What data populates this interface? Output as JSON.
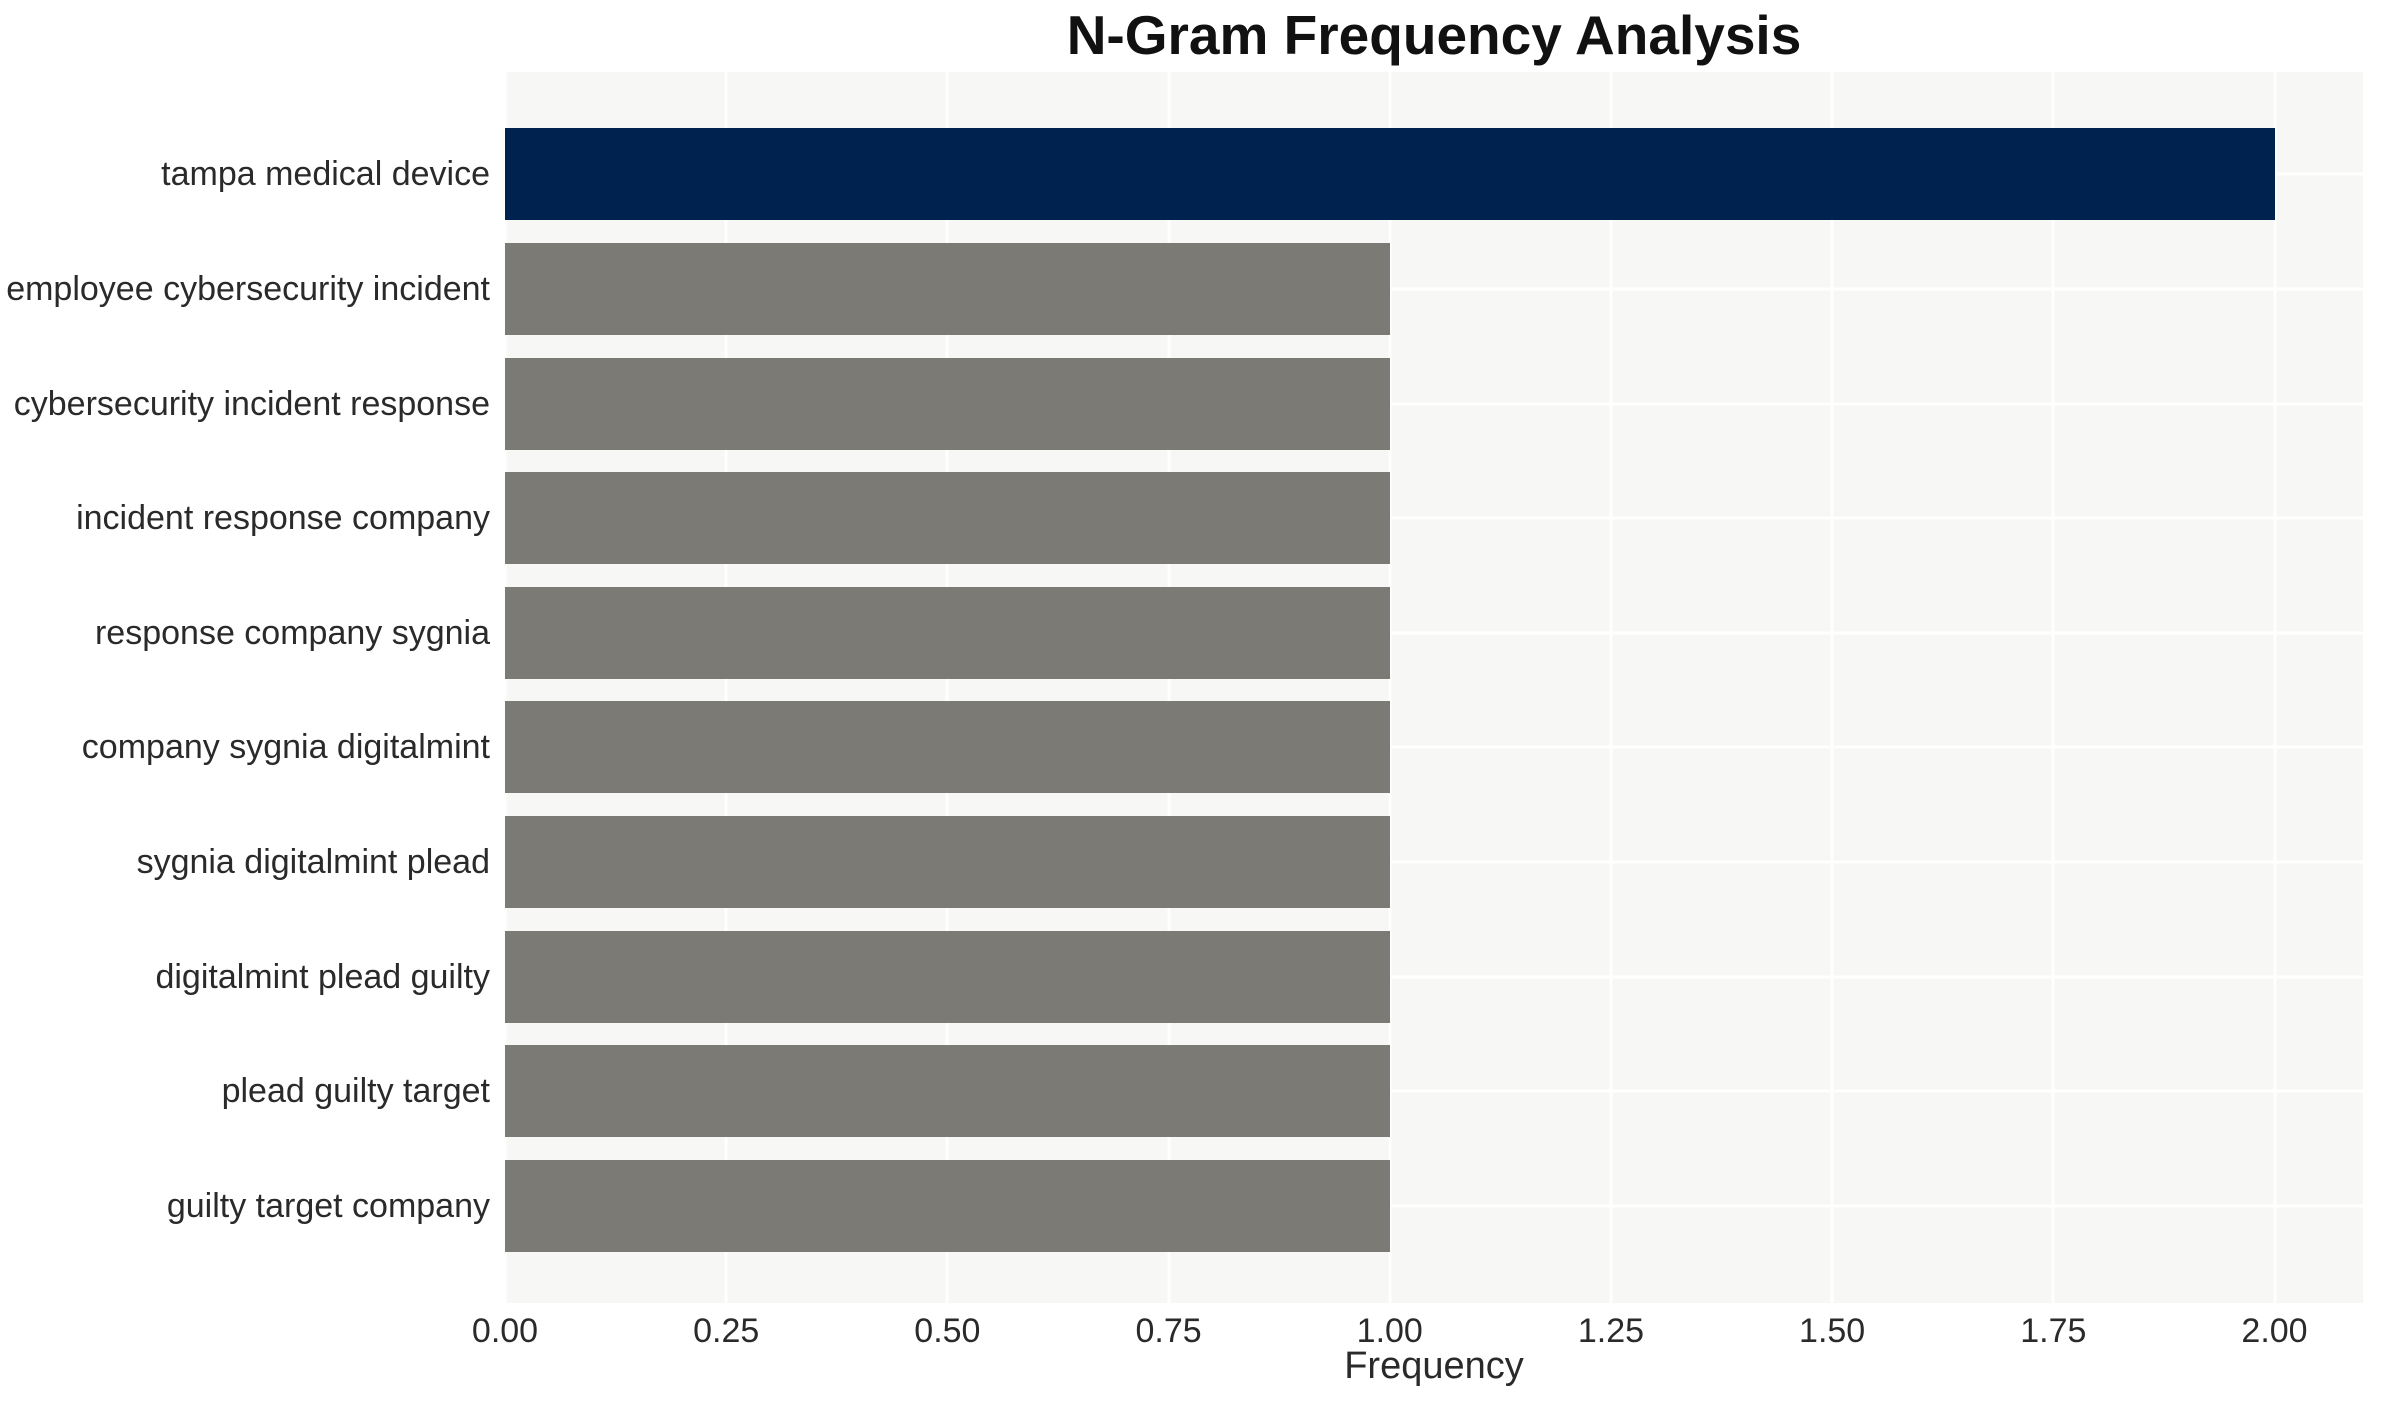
{
  "chart_data": {
    "type": "bar",
    "orientation": "horizontal",
    "title": "N-Gram Frequency Analysis",
    "xlabel": "Frequency",
    "ylabel": "",
    "categories": [
      "tampa medical device",
      "employee cybersecurity incident",
      "cybersecurity incident response",
      "incident response company",
      "response company sygnia",
      "company sygnia digitalmint",
      "sygnia digitalmint plead",
      "digitalmint plead guilty",
      "plead guilty target",
      "guilty target company"
    ],
    "values": [
      2,
      1,
      1,
      1,
      1,
      1,
      1,
      1,
      1,
      1
    ],
    "bar_colors": [
      "#00224e",
      "#7b7a75",
      "#7b7a75",
      "#7b7a75",
      "#7b7a75",
      "#7b7a75",
      "#7b7a75",
      "#7b7a75",
      "#7b7a75",
      "#7b7a75"
    ],
    "highlight_color": "#00224e",
    "default_bar_color": "#7b7a75",
    "xlim": [
      0,
      2.1
    ],
    "xticks": [
      {
        "value": 0.0,
        "label": "0.00"
      },
      {
        "value": 0.25,
        "label": "0.25"
      },
      {
        "value": 0.5,
        "label": "0.50"
      },
      {
        "value": 0.75,
        "label": "0.75"
      },
      {
        "value": 1.0,
        "label": "1.00"
      },
      {
        "value": 1.25,
        "label": "1.25"
      },
      {
        "value": 1.5,
        "label": "1.50"
      },
      {
        "value": 1.75,
        "label": "1.75"
      },
      {
        "value": 2.0,
        "label": "2.00"
      }
    ],
    "grid": true,
    "legend": false,
    "plot_background": "#f7f7f6",
    "gridline_color": "#ffffff",
    "figure_background": "#ffffff",
    "axis_text_color": "#2a2a2a",
    "title_color": "#111111"
  }
}
